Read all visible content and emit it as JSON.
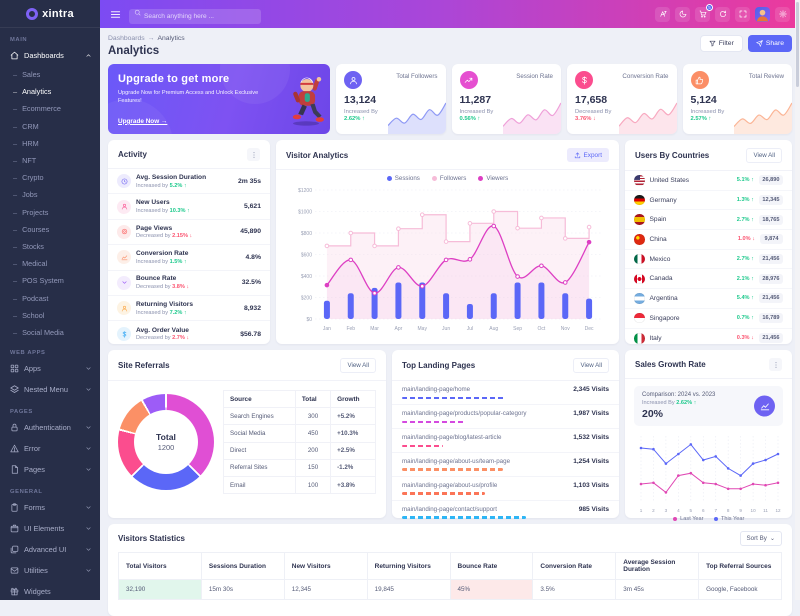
{
  "brand": {
    "name": "xintra"
  },
  "header": {
    "search_placeholder": "Search anything here ...",
    "cart_badge": "5",
    "icons": [
      "translate",
      "moon",
      "cart",
      "refresh",
      "expand",
      "avatar",
      "gear"
    ]
  },
  "sidebar": {
    "sections": [
      {
        "label": "MAIN",
        "items": [
          {
            "label": "Dashboards",
            "icon": "home",
            "chevron": "up",
            "active": true,
            "children": [
              "Sales",
              "Analytics",
              "Ecommerce",
              "CRM",
              "HRM",
              "NFT",
              "Crypto",
              "Jobs",
              "Projects",
              "Courses",
              "Stocks",
              "Medical",
              "POS System",
              "Podcast",
              "School",
              "Social Media"
            ],
            "active_child": "Analytics"
          }
        ]
      },
      {
        "label": "WEB APPS",
        "items": [
          {
            "label": "Apps",
            "icon": "grid",
            "chevron": "down"
          },
          {
            "label": "Nested Menu",
            "icon": "layers",
            "chevron": "down"
          }
        ]
      },
      {
        "label": "PAGES",
        "items": [
          {
            "label": "Authentication",
            "icon": "lock",
            "chevron": "down"
          },
          {
            "label": "Error",
            "icon": "warning",
            "chevron": "down"
          },
          {
            "label": "Pages",
            "icon": "file",
            "chevron": "down"
          }
        ]
      },
      {
        "label": "GENERAL",
        "items": [
          {
            "label": "Forms",
            "icon": "clipboard",
            "chevron": "down"
          },
          {
            "label": "UI Elements",
            "icon": "box",
            "chevron": "down"
          },
          {
            "label": "Advanced UI",
            "icon": "stack",
            "chevron": "down"
          },
          {
            "label": "Utilities",
            "icon": "mail",
            "chevron": "down"
          },
          {
            "label": "Widgets",
            "icon": "gift",
            "chevron": "none"
          }
        ]
      }
    ]
  },
  "page": {
    "breadcrumb_parent": "Dashboards",
    "breadcrumb_current": "Analytics",
    "title": "Analytics",
    "filter_label": "Filter",
    "share_label": "Share"
  },
  "banner": {
    "title": "Upgrade to get more",
    "subtitle": "Upgrade Now for Premium Access and Unlock Exclusive Features!",
    "cta": "Upgrade Now →"
  },
  "stats": [
    {
      "label": "Total Followers",
      "value": "13,124",
      "direction_label": "Increased By",
      "percent": "2.62%",
      "trend": "up",
      "icon": "user",
      "icon_bg": "#6e62f2"
    },
    {
      "label": "Session Rate",
      "value": "11,287",
      "direction_label": "Increased By",
      "percent": "0.56%",
      "trend": "up",
      "icon": "trend",
      "icon_bg": "#e54fd0"
    },
    {
      "label": "Conversion Rate",
      "value": "17,658",
      "direction_label": "Decreased By",
      "percent": "3.76%",
      "trend": "down",
      "icon": "dollar",
      "icon_bg": "#fb4d8e"
    },
    {
      "label": "Total Review",
      "value": "5,124",
      "direction_label": "Increased By",
      "percent": "2.57%",
      "trend": "up",
      "icon": "thumb",
      "icon_bg": "#fb8e66"
    }
  ],
  "activity": {
    "title": "Activity",
    "items": [
      {
        "title": "Avg. Session Duration",
        "sub": "Increased by",
        "percent": "5.2%",
        "trend": "up",
        "value": "2m 35s",
        "icon": "clock",
        "color": "#6e62f2",
        "bg": "#edebfd"
      },
      {
        "title": "New Users",
        "sub": "Increased by",
        "percent": "10.3%",
        "trend": "up",
        "value": "5,621",
        "icon": "user",
        "color": "#fb4d8e",
        "bg": "#fdeaf3"
      },
      {
        "title": "Page Views",
        "sub": "Decreased by",
        "percent": "2.15%",
        "trend": "down",
        "value": "45,890",
        "icon": "target",
        "color": "#fb5b5b",
        "bg": "#fdeaea"
      },
      {
        "title": "Conversion Rate",
        "sub": "Increased by",
        "percent": "1.5%",
        "trend": "up",
        "value": "4.8%",
        "icon": "chartline",
        "color": "#fb8e66",
        "bg": "#fdefe8"
      },
      {
        "title": "Bounce Rate",
        "sub": "Decreased by",
        "percent": "3.8%",
        "trend": "down",
        "value": "32.5%",
        "icon": "chevdown",
        "color": "#9d5cf7",
        "bg": "#f3ecfd"
      },
      {
        "title": "Returning Visitors",
        "sub": "Increased by",
        "percent": "7.2%",
        "trend": "up",
        "value": "8,932",
        "icon": "user",
        "color": "#fba23c",
        "bg": "#fdf3e3"
      },
      {
        "title": "Avg. Order Value",
        "sub": "Decreased by",
        "percent": "2.7%",
        "trend": "down",
        "value": "$56.78",
        "icon": "dollar",
        "color": "#38a9f5",
        "bg": "#e4f3fd"
      }
    ]
  },
  "visitor_analytics": {
    "title": "Visitor Analytics",
    "export_label": "Export"
  },
  "countries": {
    "title": "Users By Countries",
    "view_all_label": "View All",
    "items": [
      {
        "name": "United States",
        "flag": "us",
        "percent": "5.1%",
        "trend": "up",
        "value": "26,890"
      },
      {
        "name": "Germany",
        "flag": "de",
        "percent": "1.3%",
        "trend": "up",
        "value": "12,345"
      },
      {
        "name": "Spain",
        "flag": "es",
        "percent": "2.7%",
        "trend": "up",
        "value": "18,765"
      },
      {
        "name": "China",
        "flag": "cn",
        "percent": "1.0%",
        "trend": "down",
        "value": "9,874"
      },
      {
        "name": "Mexico",
        "flag": "mx",
        "percent": "2.7%",
        "trend": "up",
        "value": "21,456"
      },
      {
        "name": "Canada",
        "flag": "ca",
        "percent": "2.1%",
        "trend": "up",
        "value": "28,976"
      },
      {
        "name": "Argentina",
        "flag": "ar",
        "percent": "5.4%",
        "trend": "up",
        "value": "21,456"
      },
      {
        "name": "Singapore",
        "flag": "sg",
        "percent": "0.7%",
        "trend": "up",
        "value": "16,789"
      },
      {
        "name": "Italy",
        "flag": "it",
        "percent": "0.3%",
        "trend": "down",
        "value": "21,456"
      }
    ]
  },
  "site_referrals": {
    "title": "Site Referrals",
    "view_all_label": "View All",
    "center_label": "Total",
    "center_value": "1200",
    "table_headers": [
      "Source",
      "Total",
      "Growth"
    ],
    "rows": [
      {
        "source": "Search Engines",
        "total": "300",
        "growth": "+5.2%",
        "trend": "up"
      },
      {
        "source": "Social Media",
        "total": "450",
        "growth": "+10.3%",
        "trend": "up"
      },
      {
        "source": "Direct",
        "total": "200",
        "growth": "+2.5%",
        "trend": "up"
      },
      {
        "source": "Referral Sites",
        "total": "150",
        "growth": "-1.2%",
        "trend": "down"
      },
      {
        "source": "Email",
        "total": "100",
        "growth": "+3.8%",
        "trend": "up"
      }
    ]
  },
  "landing_pages": {
    "title": "Top Landing Pages",
    "view_all_label": "View All",
    "items": [
      {
        "path": "main/landing-page/home",
        "visits": "2,345 Visits",
        "percent": 50,
        "color": "#5b67f7"
      },
      {
        "path": "main/landing-page/products/popular-category",
        "visits": "1,987 Visits",
        "percent": 30,
        "color": "#d44ae0"
      },
      {
        "path": "main/landing-page/blog/latest-article",
        "visits": "1,532 Visits",
        "percent": 20,
        "color": "#fb4d8e"
      },
      {
        "path": "main/landing-page/about-us/team-page",
        "visits": "1,254 Visits",
        "percent": 49,
        "color": "#fb9066"
      },
      {
        "path": "main/landing-page/about-us/profile",
        "visits": "1,103 Visits",
        "percent": 40,
        "color": "#fb7557"
      },
      {
        "path": "main/landing-page/contact/support",
        "visits": "985 Visits",
        "percent": 60,
        "color": "#2eb5f5"
      }
    ]
  },
  "sales_growth": {
    "title": "Sales Growth Rate",
    "comparison": "Comparison: 2024 vs. 2023",
    "increase_label": "Increased By",
    "increase_percent": "2.62%",
    "trend": "up",
    "rate": "20%"
  },
  "visitors_statistics": {
    "title": "Visitors Statistics",
    "sort_label": "Sort By",
    "headers": [
      "Total Visitors",
      "Sessions Duration",
      "New Visitors",
      "Returning Visitors",
      "Bounce Rate",
      "Conversion Rate",
      "Average Session Duration",
      "Top Referral Sources"
    ],
    "values": [
      "32,190",
      "15m 30s",
      "12,345",
      "19,845",
      "45%",
      "3.5%",
      "3m 45s",
      "Google, Facebook"
    ],
    "highlight": {
      "0": "#e1f6ec",
      "4": "#fde9e9"
    }
  },
  "colors": {
    "primary": "#5b67f7",
    "green": "#1dc98c",
    "red": "#fb5470"
  },
  "chart_data": [
    {
      "id": "visitor_analytics",
      "type": "combo",
      "title": "Visitor Analytics",
      "x": [
        "Jan",
        "Feb",
        "Mar",
        "Apr",
        "May",
        "Jun",
        "Jul",
        "Aug",
        "Sep",
        "Oct",
        "Nov",
        "Dec"
      ],
      "ylim": [
        0,
        1200
      ],
      "yticks": [
        "$0",
        "$200",
        "$400",
        "$600",
        "$800",
        "$1000",
        "$1200"
      ],
      "legend_position": "top",
      "grid": true,
      "series": [
        {
          "name": "Sessions",
          "type": "bar",
          "color": "#5b67f7",
          "values": [
            170,
            240,
            290,
            340,
            340,
            240,
            140,
            240,
            340,
            340,
            240,
            190
          ]
        },
        {
          "name": "Followers",
          "type": "step_line",
          "color": "#f6bcd8",
          "fill": "#fbdcec",
          "values": [
            680,
            800,
            680,
            840,
            970,
            720,
            890,
            1000,
            845,
            940,
            750,
            855
          ]
        },
        {
          "name": "Viewers",
          "type": "smooth_line",
          "color": "#dd3fc3",
          "values": [
            315,
            550,
            240,
            480,
            305,
            550,
            555,
            865,
            395,
            495,
            340,
            715
          ]
        }
      ]
    },
    {
      "id": "site_referrals",
      "type": "donut",
      "title": "Site Referrals",
      "center_label": "Total",
      "total": 1200,
      "slices": [
        {
          "label": "Social Media",
          "value": 450,
          "color": "#e04fd4"
        },
        {
          "label": "Search Engines",
          "value": 300,
          "color": "#5b67f7"
        },
        {
          "label": "Direct",
          "value": 200,
          "color": "#fb4d8e"
        },
        {
          "label": "Referral Sites",
          "value": 150,
          "color": "#fb9066"
        },
        {
          "label": "Email",
          "value": 100,
          "color": "#9d5cf7"
        }
      ]
    },
    {
      "id": "sales_growth",
      "type": "line",
      "title": "Sales Growth Rate",
      "x": [
        1,
        2,
        3,
        4,
        5,
        6,
        7,
        8,
        9,
        10,
        11,
        12
      ],
      "ylim": [
        30,
        85
      ],
      "grid": true,
      "legend_position": "bottom",
      "series": [
        {
          "name": "Last Year",
          "color": "#e048b4",
          "values": [
            45,
            46,
            38,
            52,
            54,
            46,
            45,
            41,
            41,
            45,
            44,
            46
          ]
        },
        {
          "name": "This Year",
          "color": "#5b67f7",
          "values": [
            75,
            74,
            62,
            70,
            78,
            65,
            68,
            58,
            52,
            62,
            65,
            70
          ]
        }
      ]
    },
    {
      "id": "stat_sparklines",
      "type": "area_sparkline",
      "series": [
        {
          "name": "Total Followers",
          "color": "#8e99f5",
          "values": [
            18,
            42,
            26,
            55,
            38,
            70,
            52,
            92
          ]
        },
        {
          "name": "Session Rate",
          "color": "#efa0d9",
          "values": [
            15,
            40,
            25,
            52,
            36,
            68,
            50,
            90
          ]
        },
        {
          "name": "Conversion Rate",
          "color": "#f8a9c0",
          "values": [
            16,
            44,
            28,
            58,
            40,
            72,
            54,
            93
          ]
        },
        {
          "name": "Total Review",
          "color": "#fbb596",
          "values": [
            14,
            38,
            24,
            50,
            36,
            66,
            50,
            88
          ]
        }
      ]
    }
  ]
}
